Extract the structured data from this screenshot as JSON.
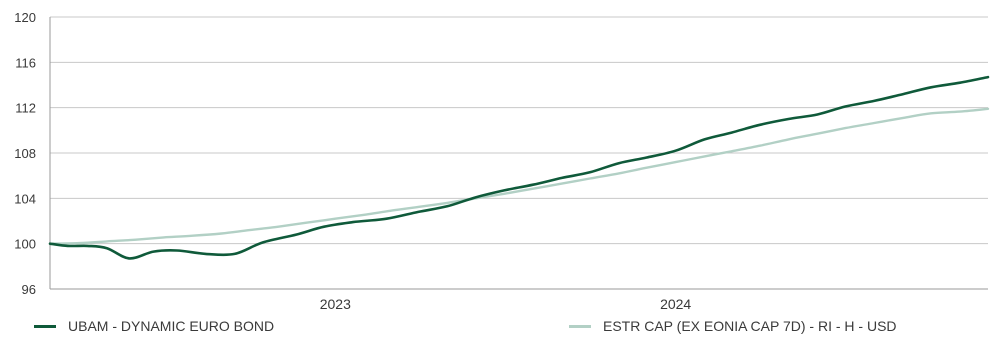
{
  "chart_data": {
    "type": "line",
    "ylim": [
      96,
      120
    ],
    "y_ticks": [
      "96",
      "100",
      "104",
      "108",
      "112",
      "116",
      "120"
    ],
    "x_labels": [
      "2023",
      "2024"
    ],
    "grid": true,
    "legend_placement": "bottom",
    "series": [
      {
        "name": "UBAM - DYNAMIC EURO BOND",
        "color": "#0f5a3a",
        "values": [
          [
            "2022-03-01",
            100.0
          ],
          [
            "2022-03-20",
            99.8
          ],
          [
            "2022-04-10",
            99.8
          ],
          [
            "2022-05-01",
            99.6
          ],
          [
            "2022-05-25",
            98.7
          ],
          [
            "2022-06-20",
            99.3
          ],
          [
            "2022-07-15",
            99.4
          ],
          [
            "2022-08-15",
            99.1
          ],
          [
            "2022-09-15",
            99.1
          ],
          [
            "2022-10-15",
            100.1
          ],
          [
            "2022-11-20",
            100.8
          ],
          [
            "2022-12-20",
            101.5
          ],
          [
            "2023-01-20",
            101.9
          ],
          [
            "2023-02-25",
            102.2
          ],
          [
            "2023-03-31",
            102.8
          ],
          [
            "2023-05-01",
            103.3
          ],
          [
            "2023-06-01",
            104.1
          ],
          [
            "2023-07-01",
            104.7
          ],
          [
            "2023-08-01",
            105.2
          ],
          [
            "2023-09-01",
            105.8
          ],
          [
            "2023-10-01",
            106.3
          ],
          [
            "2023-11-01",
            107.1
          ],
          [
            "2023-12-01",
            107.6
          ],
          [
            "2024-01-01",
            108.2
          ],
          [
            "2024-02-01",
            109.2
          ],
          [
            "2024-03-01",
            109.8
          ],
          [
            "2024-04-01",
            110.5
          ],
          [
            "2024-05-01",
            111.0
          ],
          [
            "2024-06-01",
            111.4
          ],
          [
            "2024-07-01",
            112.1
          ],
          [
            "2024-08-01",
            112.6
          ],
          [
            "2024-09-01",
            113.2
          ],
          [
            "2024-10-01",
            113.8
          ],
          [
            "2024-11-01",
            114.2
          ],
          [
            "2024-12-01",
            114.7
          ]
        ]
      },
      {
        "name": "ESTR CAP (EX EONIA CAP 7D) - RI - H  - USD",
        "color": "#b2d0c5",
        "values": [
          [
            "2022-03-01",
            100.0
          ],
          [
            "2022-04-01",
            100.05
          ],
          [
            "2022-05-01",
            100.2
          ],
          [
            "2022-06-01",
            100.35
          ],
          [
            "2022-07-01",
            100.55
          ],
          [
            "2022-08-01",
            100.7
          ],
          [
            "2022-09-01",
            100.9
          ],
          [
            "2022-10-01",
            101.2
          ],
          [
            "2022-11-01",
            101.5
          ],
          [
            "2022-12-01",
            101.85
          ],
          [
            "2023-01-01",
            102.2
          ],
          [
            "2023-02-01",
            102.55
          ],
          [
            "2023-03-01",
            102.9
          ],
          [
            "2023-04-01",
            103.25
          ],
          [
            "2023-05-01",
            103.6
          ],
          [
            "2023-06-01",
            104.0
          ],
          [
            "2023-07-01",
            104.4
          ],
          [
            "2023-08-01",
            104.85
          ],
          [
            "2023-09-01",
            105.3
          ],
          [
            "2023-10-01",
            105.75
          ],
          [
            "2023-11-01",
            106.2
          ],
          [
            "2023-12-01",
            106.7
          ],
          [
            "2024-01-01",
            107.2
          ],
          [
            "2024-02-01",
            107.7
          ],
          [
            "2024-03-01",
            108.15
          ],
          [
            "2024-04-01",
            108.65
          ],
          [
            "2024-05-01",
            109.2
          ],
          [
            "2024-06-01",
            109.7
          ],
          [
            "2024-07-01",
            110.2
          ],
          [
            "2024-08-01",
            110.65
          ],
          [
            "2024-09-01",
            111.1
          ],
          [
            "2024-10-01",
            111.5
          ],
          [
            "2024-11-01",
            111.65
          ],
          [
            "2024-12-01",
            111.9
          ]
        ]
      }
    ]
  }
}
